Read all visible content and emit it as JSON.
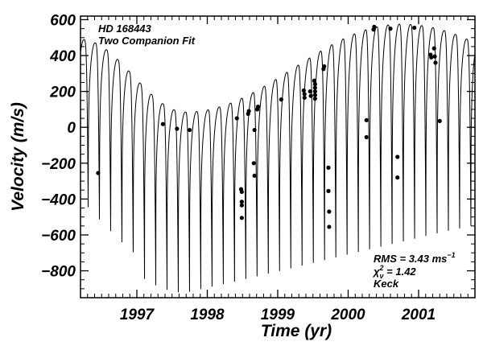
{
  "chart_data": {
    "type": "scatter",
    "title": "",
    "xlabel": "Time  (yr)",
    "ylabel": "Velocity (m/s)",
    "xlim": [
      1996.2,
      2001.8
    ],
    "ylim": [
      -950,
      620
    ],
    "x_ticks": [
      1997,
      1998,
      1999,
      2000,
      2001
    ],
    "x_tick_labels": [
      "1997",
      "1998",
      "1999",
      "2000",
      "2001"
    ],
    "y_ticks": [
      600,
      400,
      200,
      0,
      -200,
      -400,
      -600,
      -800
    ],
    "y_tick_labels": [
      "600",
      "400",
      "200",
      "0",
      "−200",
      "−400",
      "−600",
      "−800"
    ],
    "grid": false,
    "annotations": {
      "star_name": "HD 168443",
      "fit_label": "Two Companion Fit",
      "rms_label": "RMS = 3.43 ms",
      "rms_exponent": "−1",
      "chi_symbol": "χ",
      "chi_subscript": "ν",
      "chi_superscript": "2",
      "chi_value": " = 1.42",
      "telescope": "Keck"
    },
    "series": [
      {
        "type": "line",
        "role": "model fit",
        "inner_period_yr": 0.1598,
        "inner_first_peak": 1996.41,
        "inner_min_near": 1996.47,
        "outer_trend": {
          "min_year": 1997.7,
          "min_peak": 85,
          "max_year": 2000.75,
          "max_peak": 575,
          "start_peak": 490
        },
        "trough_depth": {
          "start": -480,
          "at_outer_min": -930,
          "at_outer_max": -700,
          "end": -610
        }
      },
      {
        "type": "scatter",
        "role": "observations",
        "points": [
          {
            "x": 1996.45,
            "y": -255
          },
          {
            "x": 1997.37,
            "y": 18
          },
          {
            "x": 1997.57,
            "y": -8
          },
          {
            "x": 1997.75,
            "y": -15
          },
          {
            "x": 1998.42,
            "y": 50
          },
          {
            "x": 1998.48,
            "y": -345
          },
          {
            "x": 1998.49,
            "y": -360
          },
          {
            "x": 1998.49,
            "y": -415
          },
          {
            "x": 1998.49,
            "y": -435
          },
          {
            "x": 1998.49,
            "y": -505
          },
          {
            "x": 1998.58,
            "y": 75
          },
          {
            "x": 1998.59,
            "y": 90
          },
          {
            "x": 1998.66,
            "y": -200
          },
          {
            "x": 1998.67,
            "y": -270
          },
          {
            "x": 1998.67,
            "y": -15
          },
          {
            "x": 1998.71,
            "y": 100
          },
          {
            "x": 1998.72,
            "y": 115
          },
          {
            "x": 1999.05,
            "y": 155
          },
          {
            "x": 1999.37,
            "y": 205
          },
          {
            "x": 1999.38,
            "y": 185
          },
          {
            "x": 1999.38,
            "y": 165
          },
          {
            "x": 1999.46,
            "y": 200
          },
          {
            "x": 1999.47,
            "y": 175
          },
          {
            "x": 1999.52,
            "y": 260
          },
          {
            "x": 1999.53,
            "y": 240
          },
          {
            "x": 1999.53,
            "y": 220
          },
          {
            "x": 1999.53,
            "y": 200
          },
          {
            "x": 1999.53,
            "y": 180
          },
          {
            "x": 1999.53,
            "y": 160
          },
          {
            "x": 1999.65,
            "y": 325
          },
          {
            "x": 1999.66,
            "y": 340
          },
          {
            "x": 1999.72,
            "y": -225
          },
          {
            "x": 1999.72,
            "y": -355
          },
          {
            "x": 1999.73,
            "y": -470
          },
          {
            "x": 1999.73,
            "y": -555
          },
          {
            "x": 2000.26,
            "y": 40
          },
          {
            "x": 2000.26,
            "y": -55
          },
          {
            "x": 2000.36,
            "y": 545
          },
          {
            "x": 2000.37,
            "y": 560
          },
          {
            "x": 2000.6,
            "y": 550
          },
          {
            "x": 2000.7,
            "y": -165
          },
          {
            "x": 2000.7,
            "y": -280
          },
          {
            "x": 2000.94,
            "y": 555
          },
          {
            "x": 2001.17,
            "y": 405
          },
          {
            "x": 2001.18,
            "y": 390
          },
          {
            "x": 2001.22,
            "y": 440
          },
          {
            "x": 2001.23,
            "y": 395
          },
          {
            "x": 2001.24,
            "y": 360
          },
          {
            "x": 2001.3,
            "y": 35
          }
        ]
      }
    ]
  }
}
